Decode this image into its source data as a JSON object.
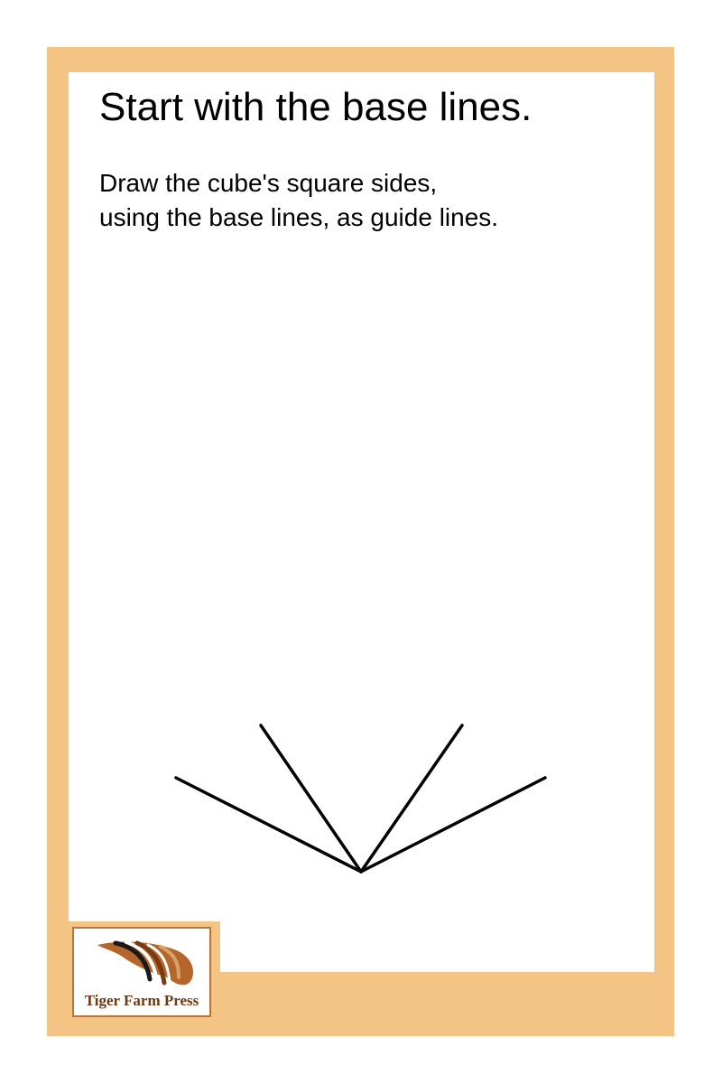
{
  "page": {
    "title": "Start with the base lines.",
    "instructions": [
      "Draw the cube's square sides,",
      "using the base lines, as guide lines."
    ]
  },
  "logo": {
    "text": "Tiger Farm Press"
  },
  "colors": {
    "frame": "#F4C485",
    "logo_border": "#B8743A",
    "logo_text": "#6B3A14",
    "lines": "#000000"
  }
}
